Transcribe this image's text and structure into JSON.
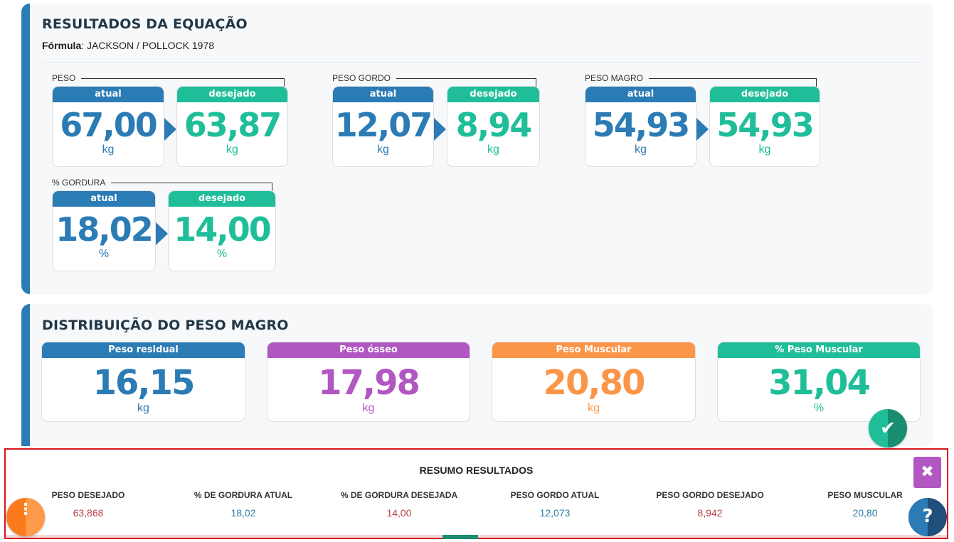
{
  "results": {
    "title": "RESULTADOS DA EQUAÇÃO",
    "formula_label": "Fórmula",
    "formula_value": ": JACKSON / POLLOCK 1978",
    "groups": [
      {
        "label": "PESO",
        "current_header": "atual",
        "desired_header": "desejado",
        "current": "67,00",
        "desired": "63,87",
        "unit": "kg"
      },
      {
        "label": "PESO GORDO",
        "current_header": "atual",
        "desired_header": "desejado",
        "current": "12,07",
        "desired": "8,94",
        "unit": "kg"
      },
      {
        "label": "PESO MAGRO",
        "current_header": "atual",
        "desired_header": "desejado",
        "current": "54,93",
        "desired": "54,93",
        "unit": "kg"
      },
      {
        "label": "% GORDURA",
        "current_header": "atual",
        "desired_header": "desejado",
        "current": "18,02",
        "desired": "14,00",
        "unit": "%"
      }
    ]
  },
  "distribution": {
    "title": "DISTRIBUIÇÃO DO PESO MAGRO",
    "cards": [
      {
        "header": "Peso residual",
        "value": "16,15",
        "unit": "kg",
        "color": "#2b7bb5"
      },
      {
        "header": "Peso ósseo",
        "value": "17,98",
        "unit": "kg",
        "color": "#b157c2"
      },
      {
        "header": "Peso Muscular",
        "value": "20,80",
        "unit": "kg",
        "color": "#fb9649"
      },
      {
        "header": "% Peso Muscular",
        "value": "31,04",
        "unit": "%",
        "color": "#1fbe99"
      }
    ]
  },
  "summary": {
    "title": "RESUMO RESULTADOS",
    "items": [
      {
        "label": "PESO DESEJADO",
        "value": "63,868"
      },
      {
        "label": "% DE GORDURA ATUAL",
        "value": "18,02"
      },
      {
        "label": "% DE GORDURA DESEJADA",
        "value": "14,00"
      },
      {
        "label": "PESO GORDO ATUAL",
        "value": "12,073"
      },
      {
        "label": "PESO GORDO DESEJADO",
        "value": "8,942"
      },
      {
        "label": "PESO MUSCULAR",
        "value": "20,80"
      }
    ],
    "close_icon": "close-icon"
  },
  "buttons": {
    "confirm_icon": "check-icon",
    "menu_icon": "vertical-dots-icon",
    "help_icon": "question-icon"
  },
  "colors": {
    "blue": "#2b7bb5",
    "green": "#1fbe99",
    "purple": "#b157c2",
    "orange": "#fb9649",
    "summary_border": "#d9141c"
  }
}
